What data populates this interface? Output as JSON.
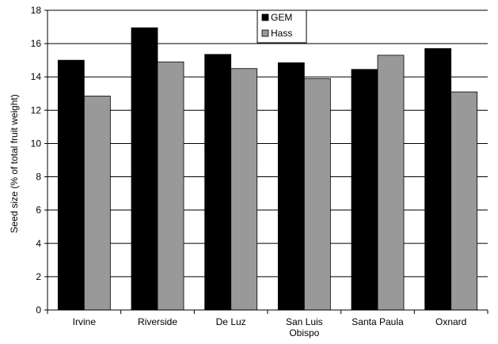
{
  "chart_data": {
    "type": "bar",
    "categories": [
      [
        "Irvine"
      ],
      [
        "Riverside"
      ],
      [
        "De Luz"
      ],
      [
        "San Luis",
        "Obispo"
      ],
      [
        "Santa Paula"
      ],
      [
        "Oxnard"
      ]
    ],
    "series": [
      {
        "name": "GEM",
        "color": "#000000",
        "values": [
          15.0,
          16.95,
          15.35,
          14.85,
          14.45,
          15.7
        ]
      },
      {
        "name": "Hass",
        "color": "#999999",
        "values": [
          12.85,
          14.9,
          14.5,
          13.9,
          15.3,
          13.1
        ]
      }
    ],
    "title": "",
    "xlabel": "",
    "ylabel": "Seed size (% of total fruit weight)",
    "ylim": [
      0,
      18
    ],
    "yticks": [
      0,
      2,
      4,
      6,
      8,
      10,
      12,
      14,
      16,
      18
    ],
    "grid": true,
    "legend_position": "top-center"
  }
}
